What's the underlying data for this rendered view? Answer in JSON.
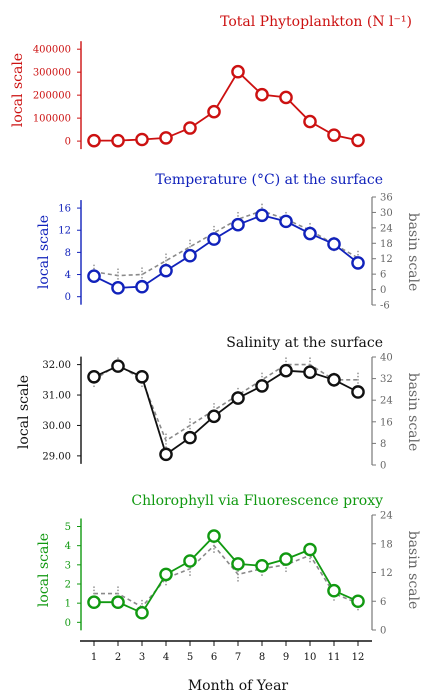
{
  "figure": {
    "xlabel": "Month of Year"
  },
  "chart_data": [
    {
      "type": "line",
      "title": "Total Phytoplankton (N l⁻¹)",
      "ylabel": "local scale",
      "color": "#cc1111",
      "x": [
        1,
        2,
        3,
        4,
        5,
        6,
        7,
        8,
        9,
        10,
        11,
        12
      ],
      "ylim": [
        -30000,
        440000
      ],
      "yticks": [
        0,
        100000,
        200000,
        300000,
        400000
      ],
      "ytick_labels": [
        "0",
        "100000",
        "200000",
        "300000",
        "400000"
      ],
      "series": [
        {
          "values": [
            2000,
            2000,
            7000,
            14000,
            57000,
            128000,
            302000,
            202000,
            190000,
            85000,
            26000,
            3000
          ]
        }
      ]
    },
    {
      "type": "line",
      "title": "Temperature (°C) at the surface",
      "ylabel": "local scale",
      "ylabel_right": "basin scale",
      "color": "#1122bb",
      "x": [
        1,
        2,
        3,
        4,
        5,
        6,
        7,
        8,
        9,
        10,
        11,
        12
      ],
      "ylim": [
        -1.5,
        18
      ],
      "yticks": [
        0,
        4,
        8,
        12,
        16
      ],
      "ytick_labels": [
        "0",
        "4",
        "8",
        "12",
        "16"
      ],
      "ylim_right": [
        -6,
        36
      ],
      "yticks_right": [
        -6,
        0,
        6,
        12,
        18,
        24,
        30,
        36
      ],
      "ytick_labels_right": [
        "-6",
        "0",
        "6",
        "12",
        "18",
        "24",
        "30",
        "36"
      ],
      "series": [
        {
          "values": [
            3.7,
            1.6,
            1.8,
            4.7,
            7.4,
            10.4,
            13.0,
            14.7,
            13.6,
            11.4,
            9.5,
            6.1
          ]
        }
      ],
      "basin_series": {
        "axis": "right",
        "style": "dashed",
        "color": "#888888",
        "values": [
          4.5,
          3.8,
          4.0,
          6.5,
          9.0,
          11.5,
          14.0,
          15.5,
          14.0,
          12.0,
          9.5,
          7.0
        ]
      }
    },
    {
      "type": "line",
      "title": "Salinity at the surface",
      "ylabel": "local scale",
      "ylabel_right": "basin scale",
      "color": "#111111",
      "x": [
        1,
        2,
        3,
        4,
        5,
        6,
        7,
        8,
        9,
        10,
        11,
        12
      ],
      "ylim": [
        28.7,
        32.25
      ],
      "yticks": [
        29,
        30,
        31,
        32
      ],
      "ytick_labels": [
        "29.00",
        "30.00",
        "31.00",
        "32.00"
      ],
      "ylim_right": [
        0,
        40
      ],
      "yticks_right": [
        0,
        8,
        16,
        24,
        32,
        40
      ],
      "ytick_labels_right": [
        "0",
        "8",
        "16",
        "24",
        "32",
        "40"
      ],
      "series": [
        {
          "values": [
            31.6,
            31.95,
            31.6,
            29.05,
            29.6,
            30.3,
            30.9,
            31.3,
            31.8,
            31.75,
            31.5,
            31.1
          ]
        }
      ],
      "basin_series": {
        "axis": "right",
        "style": "dashed",
        "color": "#888888",
        "values": [
          31.5,
          32.0,
          31.5,
          29.5,
          30.0,
          30.5,
          31.0,
          31.5,
          32.0,
          32.0,
          31.5,
          31.5
        ]
      }
    },
    {
      "type": "line",
      "title": "Chlorophyll via Fluorescence proxy",
      "ylabel": "local scale",
      "ylabel_right": "basin scale",
      "color": "#119911",
      "x": [
        1,
        2,
        3,
        4,
        5,
        6,
        7,
        8,
        9,
        10,
        11,
        12
      ],
      "ylim": [
        -0.4,
        5.6
      ],
      "yticks": [
        0,
        1,
        2,
        3,
        4,
        5
      ],
      "ytick_labels": [
        "0",
        "1",
        "2",
        "3",
        "4",
        "5"
      ],
      "ylim_right": [
        0,
        24
      ],
      "yticks_right": [
        0,
        6,
        12,
        18,
        24
      ],
      "ytick_labels_right": [
        "0",
        "6",
        "12",
        "18",
        "24"
      ],
      "series": [
        {
          "values": [
            1.05,
            1.05,
            0.5,
            2.5,
            3.2,
            4.5,
            3.05,
            2.95,
            3.3,
            3.8,
            1.65,
            1.1
          ]
        }
      ],
      "basin_series": {
        "axis": "right",
        "style": "dashed",
        "color": "#888888",
        "values": [
          1.5,
          1.5,
          0.8,
          2.3,
          2.8,
          4.0,
          2.5,
          2.8,
          3.0,
          3.5,
          1.5,
          1.0
        ]
      }
    }
  ],
  "x_axis": {
    "ticks": [
      1,
      2,
      3,
      4,
      5,
      6,
      7,
      8,
      9,
      10,
      11,
      12
    ],
    "tick_labels": [
      "1",
      "2",
      "3",
      "4",
      "5",
      "6",
      "7",
      "8",
      "9",
      "10",
      "11",
      "12"
    ]
  }
}
